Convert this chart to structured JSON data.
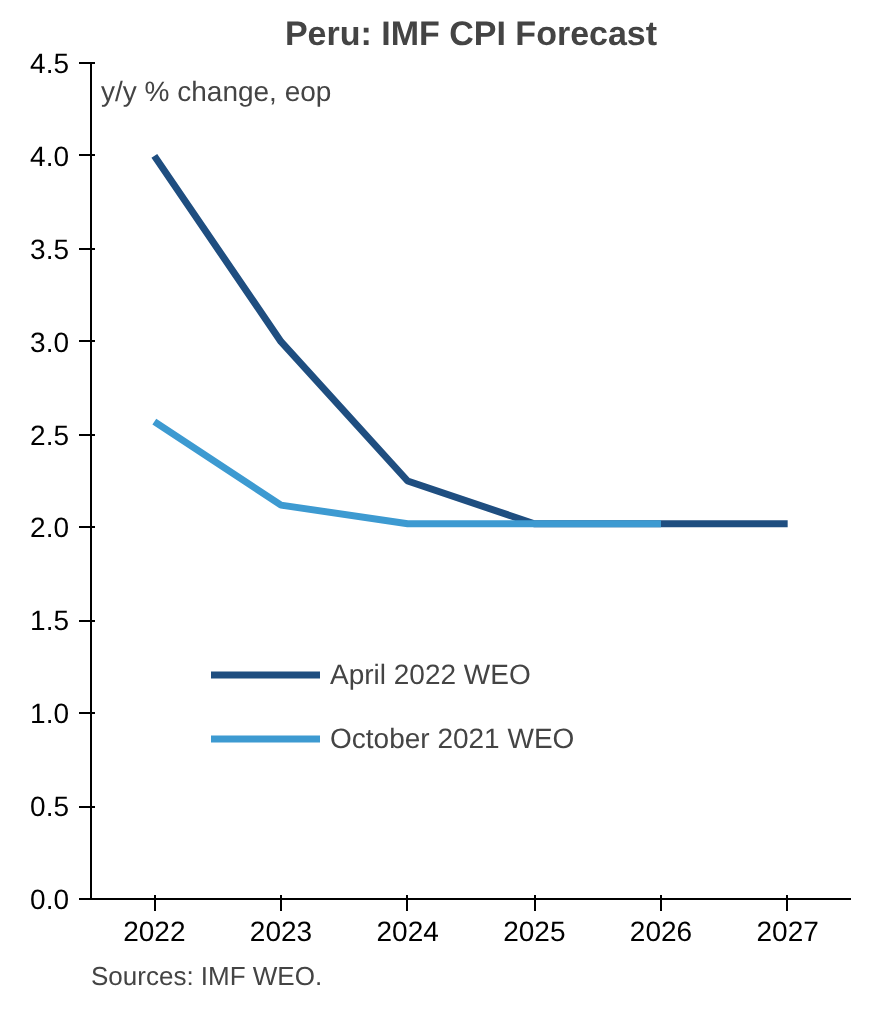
{
  "chart_data": {
    "type": "line",
    "title": "Peru: IMF CPI Forecast",
    "ylabel": "y/y % change, eop",
    "categories": [
      "2022",
      "2023",
      "2024",
      "2025",
      "2026",
      "2027"
    ],
    "series": [
      {
        "name": "April 2022 WEO",
        "color": "#1f4e80",
        "values": [
          4.0,
          3.0,
          2.25,
          2.02,
          2.02,
          2.02
        ]
      },
      {
        "name": "October 2021 WEO",
        "color": "#3d9ad1",
        "values": [
          2.57,
          2.12,
          2.02,
          2.02,
          2.02,
          null
        ]
      }
    ],
    "ylim": [
      0,
      4.5
    ],
    "yticks": [
      {
        "value": 0,
        "label": "0.0"
      },
      {
        "value": 0.5,
        "label": "0.5"
      },
      {
        "value": 1,
        "label": "1.0"
      },
      {
        "value": 1.5,
        "label": "1.5"
      },
      {
        "value": 2,
        "label": "2.0"
      },
      {
        "value": 2.5,
        "label": "2.5"
      },
      {
        "value": 3,
        "label": "3.0"
      },
      {
        "value": 3.5,
        "label": "3.5"
      },
      {
        "value": 4,
        "label": "4.0"
      },
      {
        "value": 4.5,
        "label": "4.5"
      }
    ],
    "grid": false,
    "legend": "bottom",
    "marker": "none",
    "line_style": "solid",
    "annotations": [
      "Sources: IMF WEO."
    ]
  }
}
